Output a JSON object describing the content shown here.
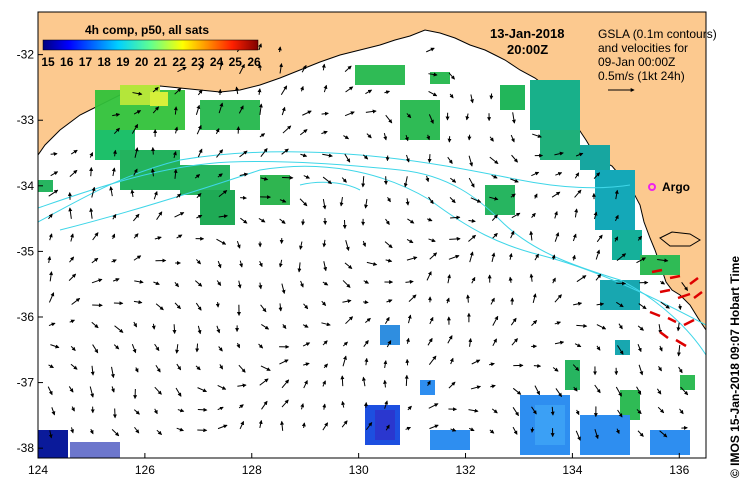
{
  "map": {
    "date": "13-Jan-2018",
    "time": "20:00Z",
    "colorbar": {
      "title": "4h comp, p50, all sats",
      "labels": [
        "15",
        "16",
        "17",
        "18",
        "19",
        "20",
        "21",
        "22",
        "23",
        "24",
        "25",
        "26"
      ],
      "min": 15,
      "max": 26
    },
    "info_lines": [
      "GSLA (0.1m contours)",
      "and velocities for",
      "09-Jan 00:00Z",
      "0.5m/s (1kt 24h)"
    ],
    "argo_label": "Argo",
    "credit": "© IMOS 15-Jan-2018 09:07 Hobart Time",
    "lon_ticks": [
      "124",
      "126",
      "128",
      "130",
      "132",
      "134",
      "136"
    ],
    "lat_ticks": [
      "-32",
      "-33",
      "-34",
      "-35",
      "-36",
      "-37",
      "-38"
    ],
    "extent": {
      "lon": [
        124,
        136.5
      ],
      "lat": [
        -38.15,
        -31.35
      ]
    },
    "colors": {
      "land": "#fcc98f",
      "contour": "#3fd6e8",
      "argo": "#ee22ee",
      "vectors": "#000000",
      "highlight_vectors": "#dd0000"
    }
  }
}
